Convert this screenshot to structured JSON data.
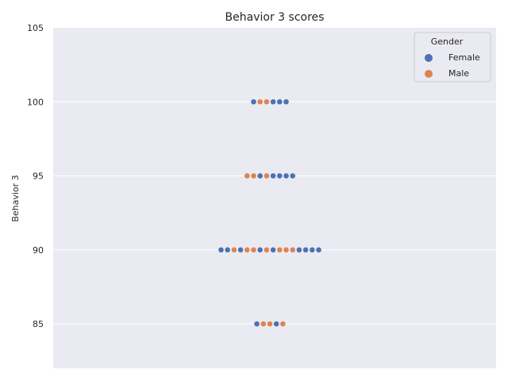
{
  "chart_data": {
    "type": "scatter",
    "subtype": "swarm",
    "title": "Behavior 3 scores",
    "xlabel": "",
    "ylabel": "Behavior 3",
    "ylim": [
      82,
      105
    ],
    "yticks": [
      85,
      90,
      95,
      100,
      105
    ],
    "grid": true,
    "legend": {
      "title": "Gender",
      "placement": "top-right",
      "entries": [
        {
          "name": "Female",
          "color": "#4c72b0"
        },
        {
          "name": "Male",
          "color": "#dd8452"
        }
      ]
    },
    "rows": [
      {
        "y": 100,
        "points": [
          "Female",
          "Male",
          "Male",
          "Female",
          "Female",
          "Female"
        ]
      },
      {
        "y": 95,
        "points": [
          "Male",
          "Male",
          "Female",
          "Male",
          "Female",
          "Female",
          "Female",
          "Female"
        ]
      },
      {
        "y": 90,
        "points": [
          "Female",
          "Female",
          "Male",
          "Female",
          "Male",
          "Male",
          "Female",
          "Male",
          "Female",
          "Male",
          "Male",
          "Male",
          "Female",
          "Female",
          "Female",
          "Female"
        ]
      },
      {
        "y": 85,
        "points": [
          "Female",
          "Male",
          "Male",
          "Female",
          "Male"
        ]
      }
    ]
  },
  "colors": {
    "background": "#eaeaf2",
    "grid": "#ffffff",
    "female": "#4c72b0",
    "male": "#dd8452"
  }
}
